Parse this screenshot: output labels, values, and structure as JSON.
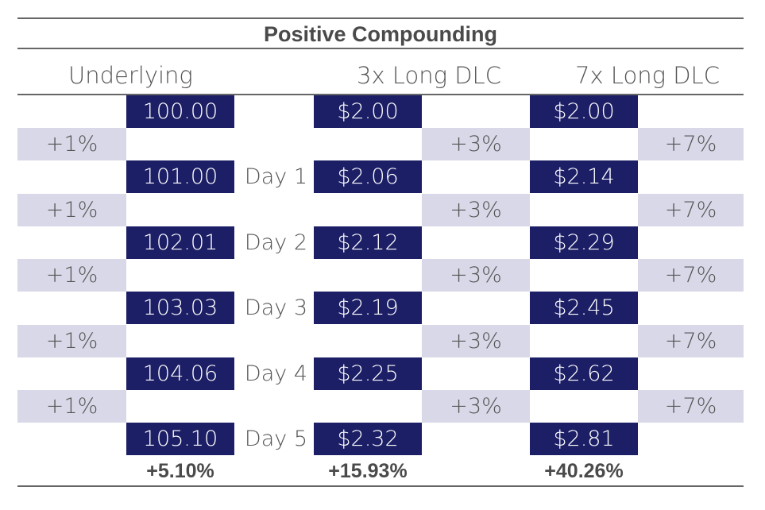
{
  "title": "Positive Compounding",
  "columns": {
    "underlying": "Underlying",
    "dlc3": "3x Long DLC",
    "dlc7": "7x Long DLC"
  },
  "rows": [
    {
      "day": "",
      "underlying": "100.00",
      "dlc3": "$2.00",
      "dlc7": "$2.00"
    },
    {
      "day": "Day 1",
      "underlying": "101.00",
      "dlc3": "$2.06",
      "dlc7": "$2.14"
    },
    {
      "day": "Day 2",
      "underlying": "102.01",
      "dlc3": "$2.12",
      "dlc7": "$2.29"
    },
    {
      "day": "Day 3",
      "underlying": "103.03",
      "dlc3": "$2.19",
      "dlc7": "$2.45"
    },
    {
      "day": "Day 4",
      "underlying": "104.06",
      "dlc3": "$2.25",
      "dlc7": "$2.62"
    },
    {
      "day": "Day 5",
      "underlying": "105.10",
      "dlc3": "$2.32",
      "dlc7": "$2.81"
    }
  ],
  "changes": {
    "underlying": "+1%",
    "dlc3": "+3%",
    "dlc7": "+7%"
  },
  "totals": {
    "underlying": "+5.10%",
    "dlc3": "+15.93%",
    "dlc7": "+40.26%"
  },
  "colors": {
    "dark_cell": "#1c1f66",
    "light_cell": "#d8d8e8",
    "text": "#555555",
    "rule": "#666666"
  }
}
